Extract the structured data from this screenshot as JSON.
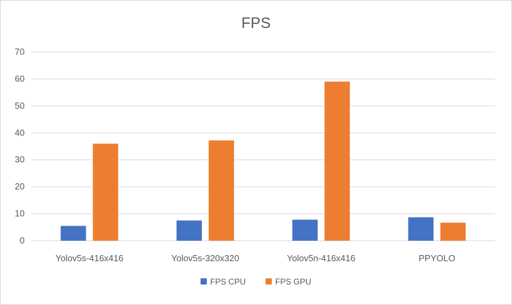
{
  "chart_data": {
    "type": "bar",
    "title": "FPS",
    "categories": [
      "Yolov5s-416x416",
      "Yolov5s-320x320",
      "Yolov5n-416x416",
      "PPYOLO"
    ],
    "series": [
      {
        "name": "FPS CPU",
        "color": "#4472C4",
        "values": [
          5.5,
          7.5,
          7.8,
          8.7
        ]
      },
      {
        "name": "FPS GPU",
        "color": "#ED7D31",
        "values": [
          36,
          37.2,
          59,
          6.7
        ]
      }
    ],
    "ylim": [
      0,
      70
    ],
    "yticks": [
      0,
      10,
      20,
      30,
      40,
      50,
      60,
      70
    ],
    "grid": true,
    "legend_position": "bottom"
  }
}
